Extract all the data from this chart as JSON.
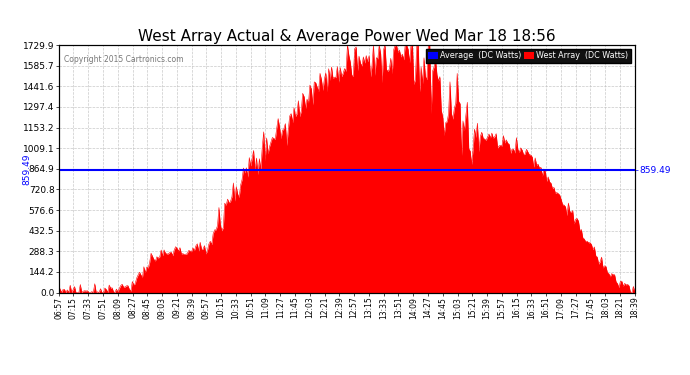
{
  "title": "West Array Actual & Average Power Wed Mar 18 18:56",
  "copyright": "Copyright 2015 Cartronics.com",
  "average_value": 859.49,
  "yticks": [
    0.0,
    144.2,
    288.3,
    432.5,
    576.6,
    720.8,
    864.9,
    1009.1,
    1153.2,
    1297.4,
    1441.6,
    1585.7,
    1729.9
  ],
  "ymax": 1729.9,
  "fill_color": "#ff0000",
  "line_color": "#ff0000",
  "avg_line_color": "#0000ff",
  "bg_color": "#ffffff",
  "grid_color": "#bbbbbb",
  "legend_avg_bg": "#0000ff",
  "legend_west_bg": "#ff0000",
  "title_fontsize": 11,
  "xtick_labels": [
    "06:57",
    "07:15",
    "07:33",
    "07:51",
    "08:09",
    "08:27",
    "08:45",
    "09:03",
    "09:21",
    "09:39",
    "09:57",
    "10:15",
    "10:33",
    "10:51",
    "11:09",
    "11:27",
    "11:45",
    "12:03",
    "12:21",
    "12:39",
    "12:57",
    "13:15",
    "13:33",
    "13:51",
    "14:09",
    "14:27",
    "14:45",
    "15:03",
    "15:21",
    "15:39",
    "15:57",
    "16:15",
    "16:33",
    "16:51",
    "17:09",
    "17:27",
    "17:45",
    "18:03",
    "18:21",
    "18:39"
  ],
  "base_power": [
    10,
    12,
    15,
    20,
    30,
    55,
    180,
    265,
    285,
    295,
    310,
    500,
    700,
    870,
    1020,
    1130,
    1210,
    1390,
    1520,
    1560,
    1610,
    1640,
    1660,
    1690,
    1650,
    1560,
    1430,
    1250,
    1100,
    1080,
    1050,
    1020,
    950,
    820,
    660,
    490,
    320,
    170,
    55,
    12
  ],
  "noise_seed": 77
}
